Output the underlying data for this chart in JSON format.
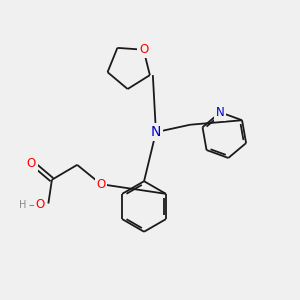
{
  "bg_color": "#f0f0f0",
  "bond_color": "#1a1a1a",
  "bond_width": 1.3,
  "atom_colors": {
    "O": "#ff0000",
    "N": "#0000cc",
    "H": "#888888",
    "C": "#1a1a1a"
  },
  "font_size_atom": 8.5,
  "fig_size": [
    3.0,
    3.0
  ],
  "dpi": 100,
  "xlim": [
    0,
    10
  ],
  "ylim": [
    0,
    10
  ]
}
